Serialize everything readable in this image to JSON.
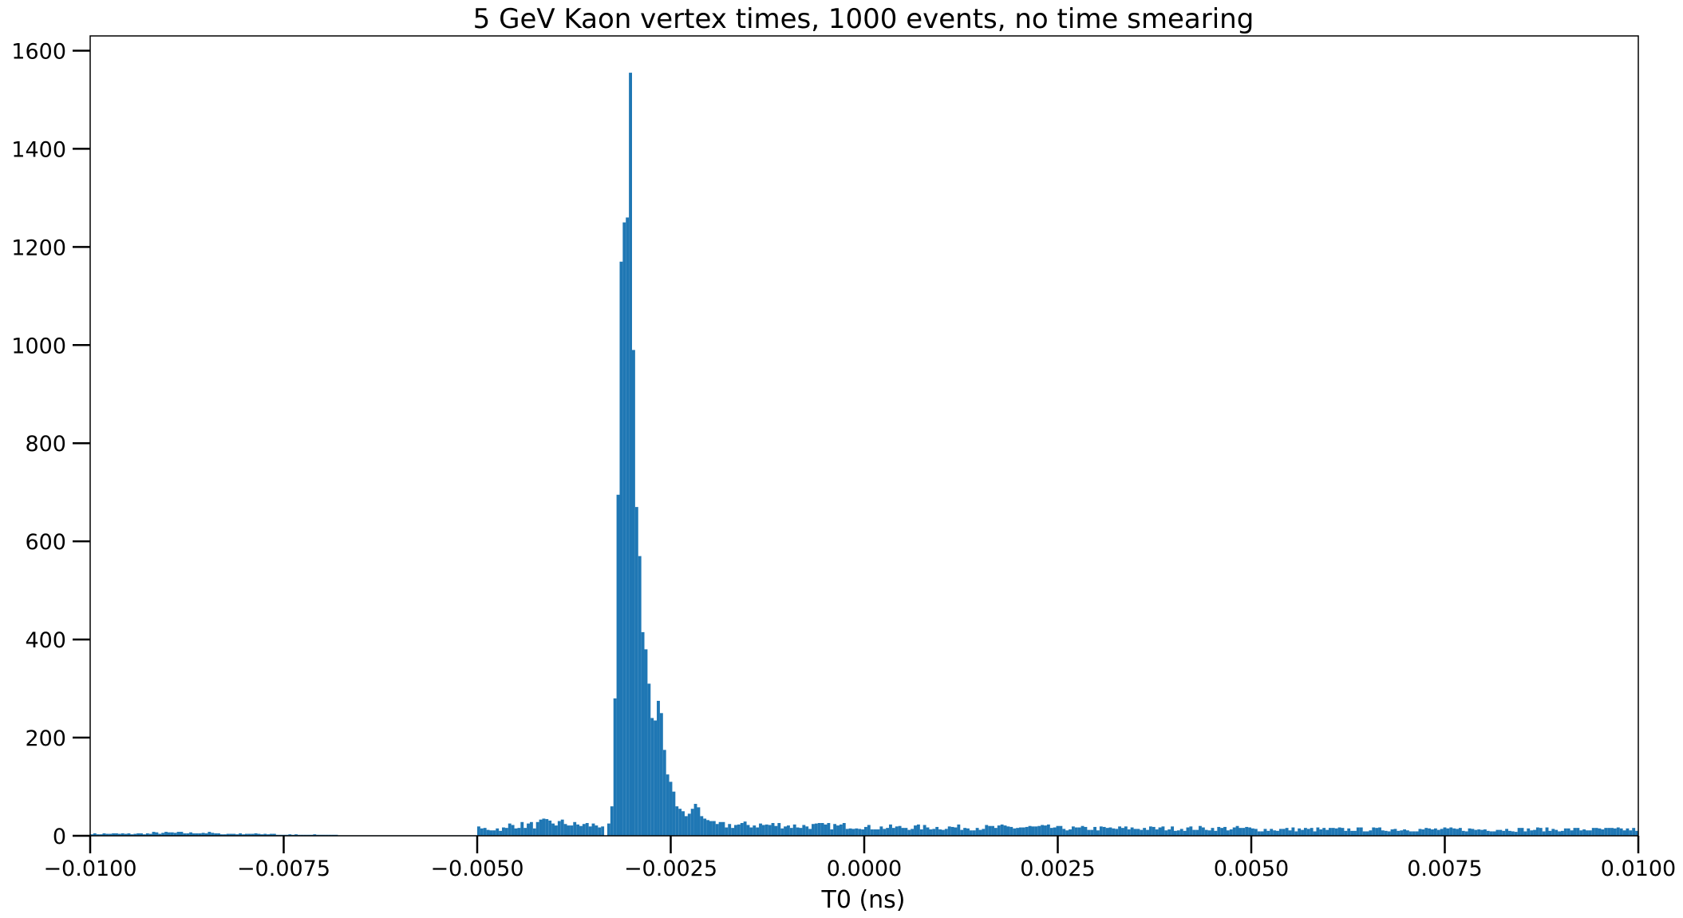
{
  "chart_data": {
    "type": "bar",
    "title": "5 GeV Kaon vertex times, 1000 events, no time smearing",
    "xlabel": "T0 (ns)",
    "ylabel": "",
    "xlim": [
      -0.01,
      0.01
    ],
    "ylim": [
      0,
      1630
    ],
    "x_ticks": [
      -0.01,
      -0.0075,
      -0.005,
      -0.0025,
      0.0,
      0.0025,
      0.005,
      0.0075,
      0.01
    ],
    "x_tick_labels": [
      "−0.0100",
      "−0.0075",
      "−0.0050",
      "−0.0025",
      "0.0000",
      "0.0025",
      "0.0050",
      "0.0075",
      "0.0100"
    ],
    "y_ticks": [
      0,
      200,
      400,
      600,
      800,
      1000,
      1200,
      1400,
      1600
    ],
    "y_tick_labels": [
      "0",
      "200",
      "400",
      "600",
      "800",
      "1000",
      "1200",
      "1400",
      "1600"
    ],
    "bar_color": "#1f77b4",
    "grid": false,
    "legend": "none",
    "bin_width": 4e-05,
    "peaks": [
      {
        "x": -0.0033,
        "y": 25
      },
      {
        "x": -0.00326,
        "y": 60
      },
      {
        "x": -0.00322,
        "y": 280
      },
      {
        "x": -0.00318,
        "y": 695
      },
      {
        "x": -0.00314,
        "y": 1170
      },
      {
        "x": -0.0031,
        "y": 1250
      },
      {
        "x": -0.00306,
        "y": 1260
      },
      {
        "x": -0.00302,
        "y": 1555
      },
      {
        "x": -0.00298,
        "y": 990
      },
      {
        "x": -0.00294,
        "y": 670
      },
      {
        "x": -0.0029,
        "y": 570
      },
      {
        "x": -0.00286,
        "y": 415
      },
      {
        "x": -0.00282,
        "y": 380
      },
      {
        "x": -0.00278,
        "y": 310
      },
      {
        "x": -0.00274,
        "y": 240
      },
      {
        "x": -0.0027,
        "y": 235
      },
      {
        "x": -0.00266,
        "y": 275
      },
      {
        "x": -0.00262,
        "y": 250
      },
      {
        "x": -0.00258,
        "y": 175
      },
      {
        "x": -0.00254,
        "y": 125
      },
      {
        "x": -0.0025,
        "y": 110
      },
      {
        "x": -0.00246,
        "y": 90
      },
      {
        "x": -0.00242,
        "y": 60
      },
      {
        "x": -0.00238,
        "y": 55
      },
      {
        "x": -0.00234,
        "y": 50
      },
      {
        "x": -0.0023,
        "y": 40
      },
      {
        "x": -0.00226,
        "y": 45
      },
      {
        "x": -0.00222,
        "y": 55
      },
      {
        "x": -0.00218,
        "y": 65
      },
      {
        "x": -0.00214,
        "y": 58
      },
      {
        "x": -0.0021,
        "y": 40
      },
      {
        "x": -0.00206,
        "y": 35
      },
      {
        "x": -0.00202,
        "y": 32
      },
      {
        "x": -0.00198,
        "y": 30
      }
    ],
    "background_regions": [
      {
        "from": -0.01,
        "to": -0.0092,
        "level": 4
      },
      {
        "from": -0.0092,
        "to": -0.0084,
        "level": 6
      },
      {
        "from": -0.0084,
        "to": -0.0076,
        "level": 4
      },
      {
        "from": -0.0076,
        "to": -0.0068,
        "level": 2
      },
      {
        "from": -0.0068,
        "to": -0.005,
        "level": 1
      },
      {
        "from": -0.005,
        "to": -0.0046,
        "level": 14
      },
      {
        "from": -0.0046,
        "to": -0.0042,
        "level": 22
      },
      {
        "from": -0.0042,
        "to": -0.0038,
        "level": 26
      },
      {
        "from": -0.0038,
        "to": -0.00334,
        "level": 22
      },
      {
        "from": -0.00198,
        "to": -0.001,
        "level": 22
      },
      {
        "from": -0.001,
        "to": 0.0,
        "level": 20
      },
      {
        "from": 0.0,
        "to": 0.0025,
        "level": 17
      },
      {
        "from": 0.0025,
        "to": 0.005,
        "level": 15
      },
      {
        "from": 0.005,
        "to": 0.0075,
        "level": 13
      },
      {
        "from": 0.0075,
        "to": 0.01,
        "level": 13
      }
    ]
  }
}
